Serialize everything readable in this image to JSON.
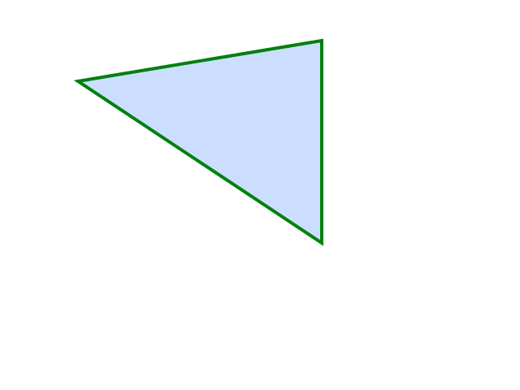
{
  "diagram": {
    "shape": "triangle",
    "fill_color": "#ccdeff",
    "stroke_color": "#00800e"
  }
}
